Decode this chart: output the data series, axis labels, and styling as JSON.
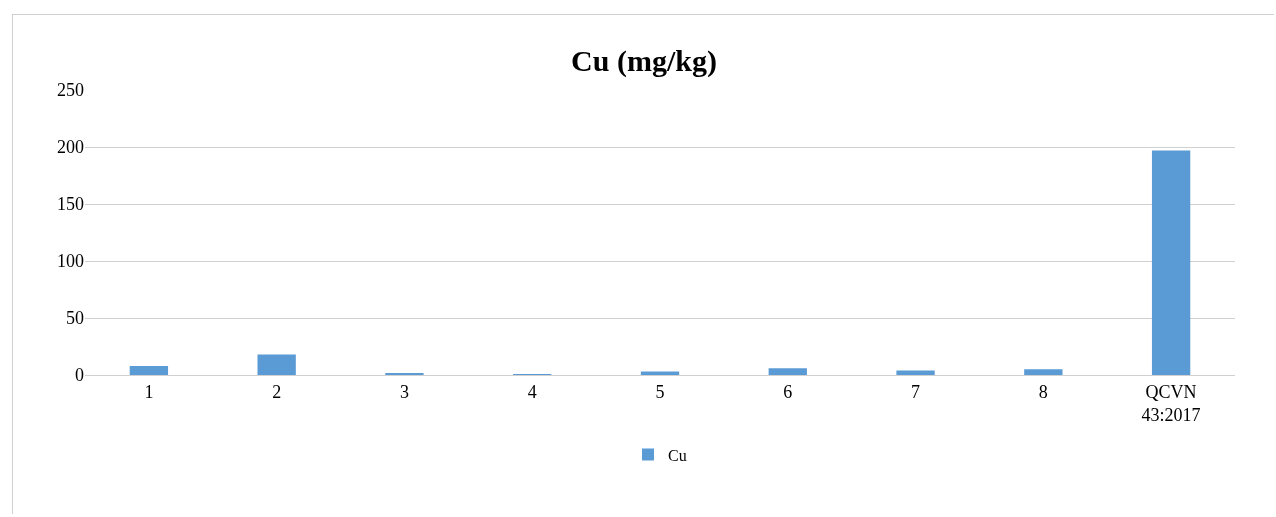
{
  "chart_data": {
    "type": "bar",
    "title": "Cu (mg/kg)",
    "categories": [
      "1",
      "2",
      "3",
      "4",
      "5",
      "6",
      "7",
      "8",
      "QCVN 43:2017"
    ],
    "series": [
      {
        "name": "Cu",
        "color": "#5b9bd5",
        "values": [
          8,
          18,
          1,
          0.5,
          3,
          6,
          4,
          5,
          197
        ]
      }
    ],
    "ylim": [
      0,
      250
    ],
    "yticks": [
      0,
      50,
      100,
      150,
      200,
      250
    ],
    "grid": "y",
    "legend": "bottom"
  }
}
